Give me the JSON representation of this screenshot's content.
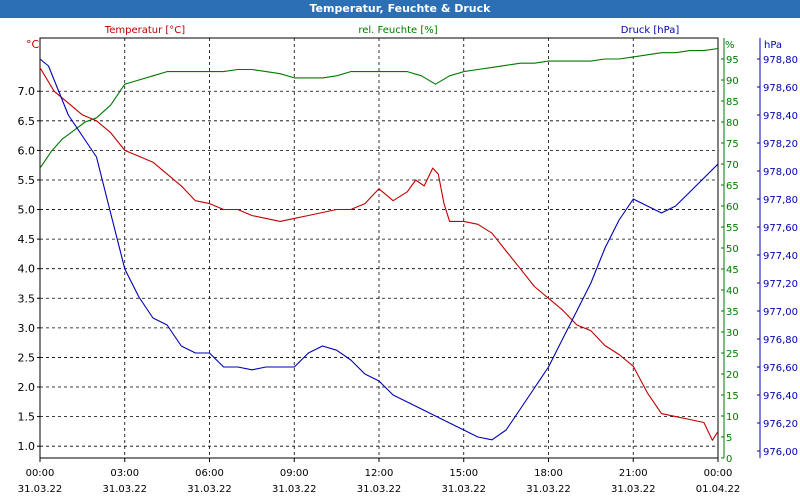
{
  "window": {
    "title": "Temperatur, Feuchte & Druck"
  },
  "colors": {
    "temperature": "#c00000",
    "humidity": "#007800",
    "pressure": "#0000b4",
    "grid": "#000000"
  },
  "chart_data": {
    "type": "line",
    "title": "Temperatur, Feuchte & Druck",
    "x_hours": {
      "start": 0,
      "end": 24,
      "step": 3
    },
    "x_tick_times": [
      "00:00",
      "03:00",
      "06:00",
      "09:00",
      "12:00",
      "15:00",
      "18:00",
      "21:00",
      "00:00"
    ],
    "x_tick_dates": [
      "31.03.22",
      "31.03.22",
      "31.03.22",
      "31.03.22",
      "31.03.22",
      "31.03.22",
      "31.03.22",
      "31.03.22",
      "01.04.22"
    ],
    "axes": {
      "temperature": {
        "label": "Temperatur [°C]",
        "unit": "°C",
        "min": 0.8,
        "max": 7.9,
        "ticks": [
          "1.0",
          "1.5",
          "2.0",
          "2.5",
          "3.0",
          "3.5",
          "4.0",
          "4.5",
          "5.0",
          "5.5",
          "6.0",
          "6.5",
          "7.0"
        ]
      },
      "humidity": {
        "label": "rel. Feuchte [%]",
        "unit": "%",
        "min": 0,
        "max": 100,
        "ticks": [
          "0",
          "5",
          "10",
          "15",
          "20",
          "25",
          "30",
          "35",
          "40",
          "45",
          "50",
          "55",
          "60",
          "65",
          "70",
          "75",
          "80",
          "85",
          "90",
          "95"
        ]
      },
      "pressure": {
        "label": "Druck [hPa]",
        "unit": "hPa",
        "min": 975.95,
        "max": 978.95,
        "ticks": [
          "976,00",
          "976,20",
          "976,40",
          "976,60",
          "976,80",
          "977,00",
          "977,20",
          "977,40",
          "977,60",
          "977,80",
          "978,00",
          "978,20",
          "978,40",
          "978,60",
          "978,80"
        ]
      }
    },
    "series": [
      {
        "name": "Temperatur [°C]",
        "axis": "temperature",
        "x": [
          0,
          0.5,
          1,
          1.5,
          2,
          2.5,
          3,
          3.5,
          4,
          4.5,
          5,
          5.5,
          6,
          6.5,
          7,
          7.5,
          8,
          8.5,
          9,
          9.5,
          10,
          10.5,
          11,
          11.5,
          12,
          12.5,
          13,
          13.3,
          13.6,
          13.9,
          14.1,
          14.3,
          14.5,
          15,
          15.5,
          16,
          16.5,
          17,
          17.5,
          18,
          18.5,
          19,
          19.5,
          20,
          20.5,
          21,
          21.5,
          22,
          22.5,
          23,
          23.5,
          23.8,
          24
        ],
        "values": [
          7.4,
          7.0,
          6.8,
          6.6,
          6.5,
          6.3,
          6.0,
          5.9,
          5.8,
          5.6,
          5.4,
          5.15,
          5.1,
          5.0,
          5.0,
          4.9,
          4.85,
          4.8,
          4.85,
          4.9,
          4.95,
          5.0,
          5.0,
          5.1,
          5.35,
          5.15,
          5.3,
          5.5,
          5.4,
          5.7,
          5.6,
          5.1,
          4.8,
          4.8,
          4.75,
          4.6,
          4.3,
          4.0,
          3.7,
          3.5,
          3.3,
          3.05,
          2.95,
          2.7,
          2.55,
          2.35,
          1.9,
          1.55,
          1.5,
          1.45,
          1.4,
          1.1,
          1.25
        ]
      },
      {
        "name": "rel. Feuchte [%]",
        "axis": "humidity",
        "x": [
          0,
          0.4,
          0.8,
          1.2,
          1.6,
          2,
          2.5,
          3,
          3.5,
          4,
          4.5,
          5,
          5.5,
          6,
          6.5,
          7,
          7.5,
          8,
          8.5,
          9,
          9.5,
          10,
          10.5,
          11,
          11.5,
          12,
          12.5,
          13,
          13.5,
          14,
          14.5,
          15,
          15.5,
          16,
          16.5,
          17,
          17.5,
          18,
          18.5,
          19,
          19.5,
          20,
          20.5,
          21,
          21.5,
          22,
          22.5,
          23,
          23.5,
          24
        ],
        "values": [
          69,
          73,
          76,
          78,
          80,
          81,
          84,
          89,
          90,
          91,
          92,
          92,
          92,
          92,
          92,
          92.5,
          92.5,
          92,
          91.5,
          90.5,
          90.5,
          90.5,
          91,
          92,
          92,
          92,
          92,
          92,
          91,
          89,
          91,
          92,
          92.5,
          93,
          93.5,
          94,
          94,
          94.5,
          94.5,
          94.5,
          94.5,
          95,
          95,
          95.5,
          96,
          96.5,
          96.5,
          97,
          97,
          97.5
        ]
      },
      {
        "name": "Druck [hPa]",
        "axis": "pressure",
        "x": [
          0,
          0.3,
          0.6,
          1,
          1.5,
          2,
          2.5,
          3,
          3.5,
          4,
          4.5,
          5,
          5.5,
          6,
          6.5,
          7,
          7.5,
          8,
          8.5,
          9,
          9.5,
          10,
          10.5,
          11,
          11.5,
          12,
          12.5,
          13,
          13.5,
          14,
          14.5,
          15,
          15.5,
          16,
          16.5,
          17,
          17.5,
          18,
          18.5,
          19,
          19.5,
          20,
          20.5,
          21,
          21.5,
          22,
          22.5,
          23,
          23.5,
          24
        ],
        "values": [
          978.8,
          978.75,
          978.6,
          978.4,
          978.25,
          978.1,
          977.7,
          977.3,
          977.1,
          976.95,
          976.9,
          976.75,
          976.7,
          976.7,
          976.6,
          976.6,
          976.58,
          976.6,
          976.6,
          976.6,
          976.7,
          976.75,
          976.72,
          976.65,
          976.55,
          976.5,
          976.4,
          976.35,
          976.3,
          976.25,
          976.2,
          976.15,
          976.1,
          976.08,
          976.15,
          976.3,
          976.45,
          976.6,
          976.8,
          977.0,
          977.2,
          977.45,
          977.65,
          977.8,
          977.75,
          977.7,
          977.75,
          977.85,
          977.95,
          978.05
        ]
      }
    ],
    "grid": true
  }
}
